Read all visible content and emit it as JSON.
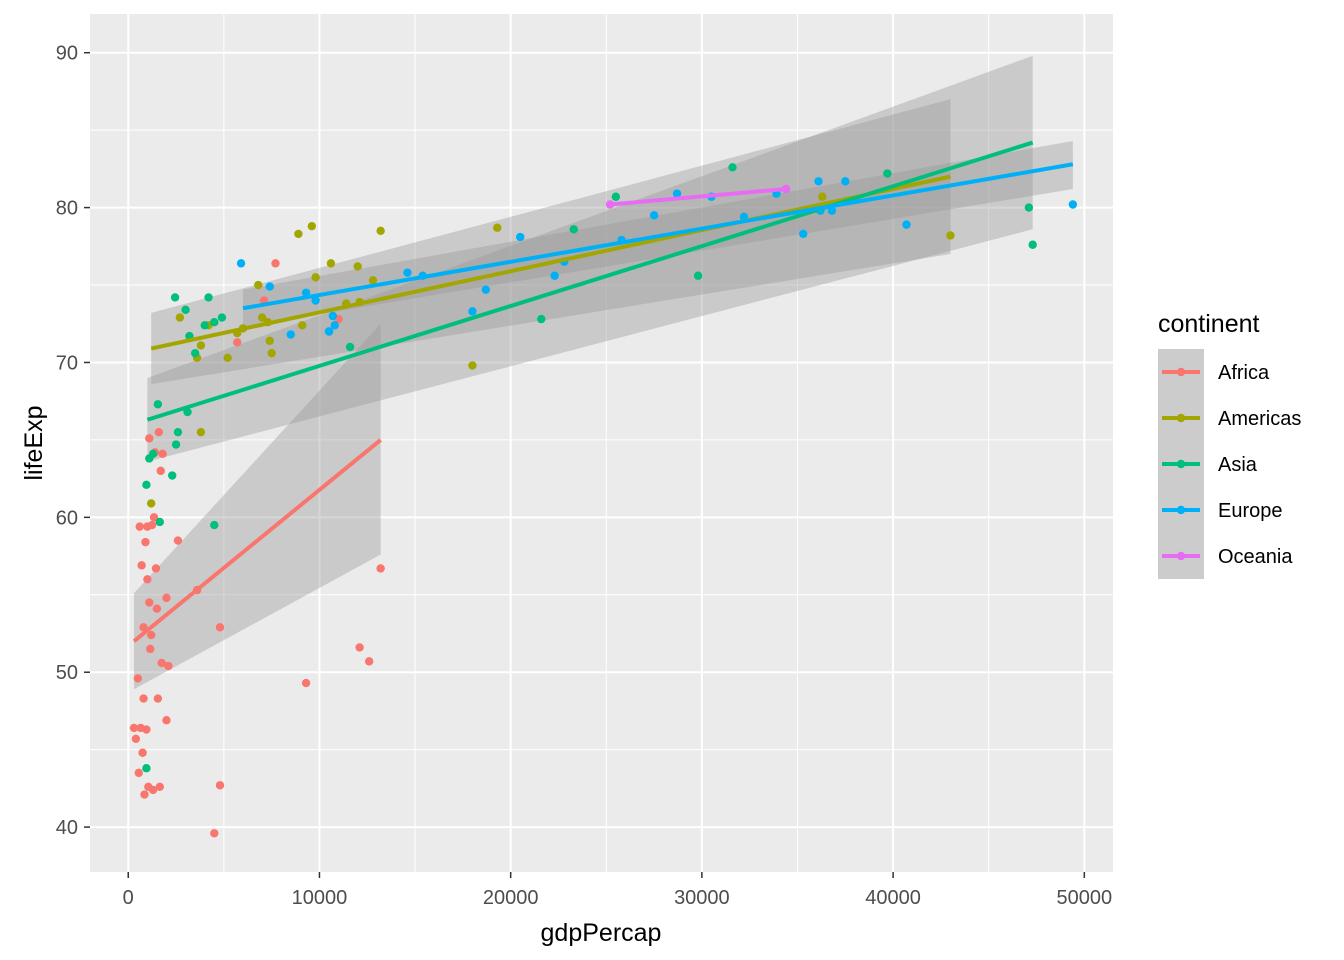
{
  "chart_data": {
    "type": "scatter",
    "xlabel": "gdpPercap",
    "ylabel": "lifeExp",
    "xlim": [
      -2000,
      51500
    ],
    "ylim": [
      37.1,
      92.5
    ],
    "x_ticks": [
      0,
      10000,
      20000,
      30000,
      40000,
      50000
    ],
    "x_tick_labels": [
      "0",
      "10000",
      "20000",
      "30000",
      "40000",
      "50000"
    ],
    "y_ticks": [
      40,
      50,
      60,
      70,
      80,
      90
    ],
    "y_tick_labels": [
      "40",
      "50",
      "60",
      "70",
      "80",
      "90"
    ],
    "grid": true,
    "legend": {
      "title": "continent",
      "position": "right"
    },
    "series": [
      {
        "name": "Africa",
        "color": "#F8766D",
        "points": [
          [
            300,
            46.4
          ],
          [
            400,
            45.7
          ],
          [
            500,
            49.6
          ],
          [
            550,
            43.5
          ],
          [
            600,
            59.4
          ],
          [
            650,
            46.4
          ],
          [
            700,
            56.9
          ],
          [
            750,
            44.8
          ],
          [
            800,
            52.9
          ],
          [
            800,
            48.3
          ],
          [
            850,
            42.1
          ],
          [
            900,
            58.4
          ],
          [
            950,
            46.3
          ],
          [
            1000,
            56.0
          ],
          [
            1000,
            59.4
          ],
          [
            1050,
            42.6
          ],
          [
            1100,
            54.5
          ],
          [
            1100,
            65.1
          ],
          [
            1150,
            51.5
          ],
          [
            1200,
            52.4
          ],
          [
            1250,
            59.5
          ],
          [
            1300,
            42.4
          ],
          [
            1350,
            60.0
          ],
          [
            1400,
            64.2
          ],
          [
            1450,
            56.7
          ],
          [
            1500,
            54.1
          ],
          [
            1550,
            48.3
          ],
          [
            1600,
            65.5
          ],
          [
            1650,
            42.6
          ],
          [
            1700,
            63.0
          ],
          [
            1750,
            50.6
          ],
          [
            1800,
            64.1
          ],
          [
            2000,
            54.8
          ],
          [
            2000,
            46.9
          ],
          [
            2100,
            50.4
          ],
          [
            2600,
            58.5
          ],
          [
            3600,
            55.3
          ],
          [
            4500,
            39.6
          ],
          [
            4800,
            52.9
          ],
          [
            4800,
            42.7
          ],
          [
            5700,
            71.3
          ],
          [
            7100,
            74.0
          ],
          [
            7700,
            76.4
          ],
          [
            9300,
            49.3
          ],
          [
            11000,
            72.8
          ],
          [
            12100,
            51.6
          ],
          [
            12600,
            50.7
          ],
          [
            13200,
            56.7
          ]
        ],
        "fit": {
          "x": [
            300,
            13200
          ],
          "y": [
            52.0,
            65.0
          ],
          "band_lower_start": 48.9,
          "band_upper_start": 55.1,
          "band_lower_end": 57.6,
          "band_upper_end": 72.5
        }
      },
      {
        "name": "Americas",
        "color": "#A3A500",
        "points": [
          [
            1200,
            60.9
          ],
          [
            2700,
            72.9
          ],
          [
            3600,
            70.3
          ],
          [
            3800,
            71.1
          ],
          [
            3800,
            65.5
          ],
          [
            4200,
            72.4
          ],
          [
            5200,
            70.3
          ],
          [
            5700,
            71.9
          ],
          [
            6000,
            72.2
          ],
          [
            6800,
            75.0
          ],
          [
            7000,
            72.9
          ],
          [
            7300,
            72.6
          ],
          [
            7400,
            71.4
          ],
          [
            7500,
            70.6
          ],
          [
            8900,
            78.3
          ],
          [
            9100,
            72.4
          ],
          [
            9600,
            78.8
          ],
          [
            9800,
            75.5
          ],
          [
            10600,
            76.4
          ],
          [
            11400,
            73.8
          ],
          [
            12000,
            76.2
          ],
          [
            12100,
            73.9
          ],
          [
            12800,
            75.3
          ],
          [
            13200,
            78.5
          ],
          [
            18000,
            69.8
          ],
          [
            19300,
            78.7
          ],
          [
            36300,
            80.7
          ],
          [
            43000,
            78.2
          ]
        ],
        "fit": {
          "x": [
            1200,
            43000
          ],
          "y": [
            70.9,
            82.0
          ],
          "band_lower_start": 68.6,
          "band_upper_start": 73.2,
          "band_lower_end": 77.0,
          "band_upper_end": 87.0
        }
      },
      {
        "name": "Asia",
        "color": "#00BF7D",
        "points": [
          [
            950,
            43.8
          ],
          [
            950,
            62.1
          ],
          [
            1100,
            63.8
          ],
          [
            1300,
            64.1
          ],
          [
            1550,
            67.3
          ],
          [
            1650,
            59.7
          ],
          [
            2300,
            62.7
          ],
          [
            2450,
            74.2
          ],
          [
            2500,
            64.7
          ],
          [
            2600,
            65.5
          ],
          [
            3000,
            73.4
          ],
          [
            3100,
            66.8
          ],
          [
            3200,
            71.7
          ],
          [
            3500,
            70.6
          ],
          [
            4000,
            72.4
          ],
          [
            4200,
            74.2
          ],
          [
            4500,
            72.6
          ],
          [
            4500,
            59.5
          ],
          [
            4900,
            72.9
          ],
          [
            10500,
            72.0
          ],
          [
            11600,
            71.0
          ],
          [
            21600,
            72.8
          ],
          [
            23300,
            78.6
          ],
          [
            25500,
            80.7
          ],
          [
            29800,
            75.6
          ],
          [
            31600,
            82.6
          ],
          [
            39700,
            82.2
          ],
          [
            47100,
            80.0
          ],
          [
            47300,
            77.6
          ]
        ],
        "fit": {
          "x": [
            1000,
            47300
          ],
          "y": [
            66.3,
            84.2
          ],
          "band_lower_start": 63.6,
          "band_upper_start": 69.0,
          "band_lower_end": 78.6,
          "band_upper_end": 89.8
        }
      },
      {
        "name": "Europe",
        "color": "#00B0F6",
        "points": [
          [
            5900,
            76.4
          ],
          [
            7400,
            74.9
          ],
          [
            8500,
            71.8
          ],
          [
            9300,
            74.5
          ],
          [
            9800,
            74.0
          ],
          [
            10500,
            72.0
          ],
          [
            10700,
            73.0
          ],
          [
            10800,
            72.4
          ],
          [
            14600,
            75.8
          ],
          [
            15400,
            75.6
          ],
          [
            18000,
            73.3
          ],
          [
            18700,
            74.7
          ],
          [
            20500,
            78.1
          ],
          [
            22300,
            75.6
          ],
          [
            22800,
            76.5
          ],
          [
            25800,
            77.9
          ],
          [
            27500,
            79.5
          ],
          [
            28700,
            80.9
          ],
          [
            30500,
            80.7
          ],
          [
            32200,
            79.4
          ],
          [
            33900,
            80.9
          ],
          [
            35300,
            78.3
          ],
          [
            36100,
            81.7
          ],
          [
            36200,
            79.8
          ],
          [
            36800,
            79.8
          ],
          [
            37500,
            81.7
          ],
          [
            40700,
            78.9
          ],
          [
            49400,
            80.2
          ]
        ],
        "fit": {
          "x": [
            6000,
            49400
          ],
          "y": [
            73.5,
            82.8
          ],
          "band_lower_start": 72.3,
          "band_upper_start": 74.7,
          "band_lower_end": 81.2,
          "band_upper_end": 84.3
        }
      },
      {
        "name": "Oceania",
        "color": "#E76BF3",
        "points": [
          [
            25200,
            80.2
          ],
          [
            34400,
            81.2
          ]
        ],
        "fit": {
          "x": [
            25200,
            34400
          ],
          "y": [
            80.2,
            81.2
          ]
        }
      }
    ]
  }
}
